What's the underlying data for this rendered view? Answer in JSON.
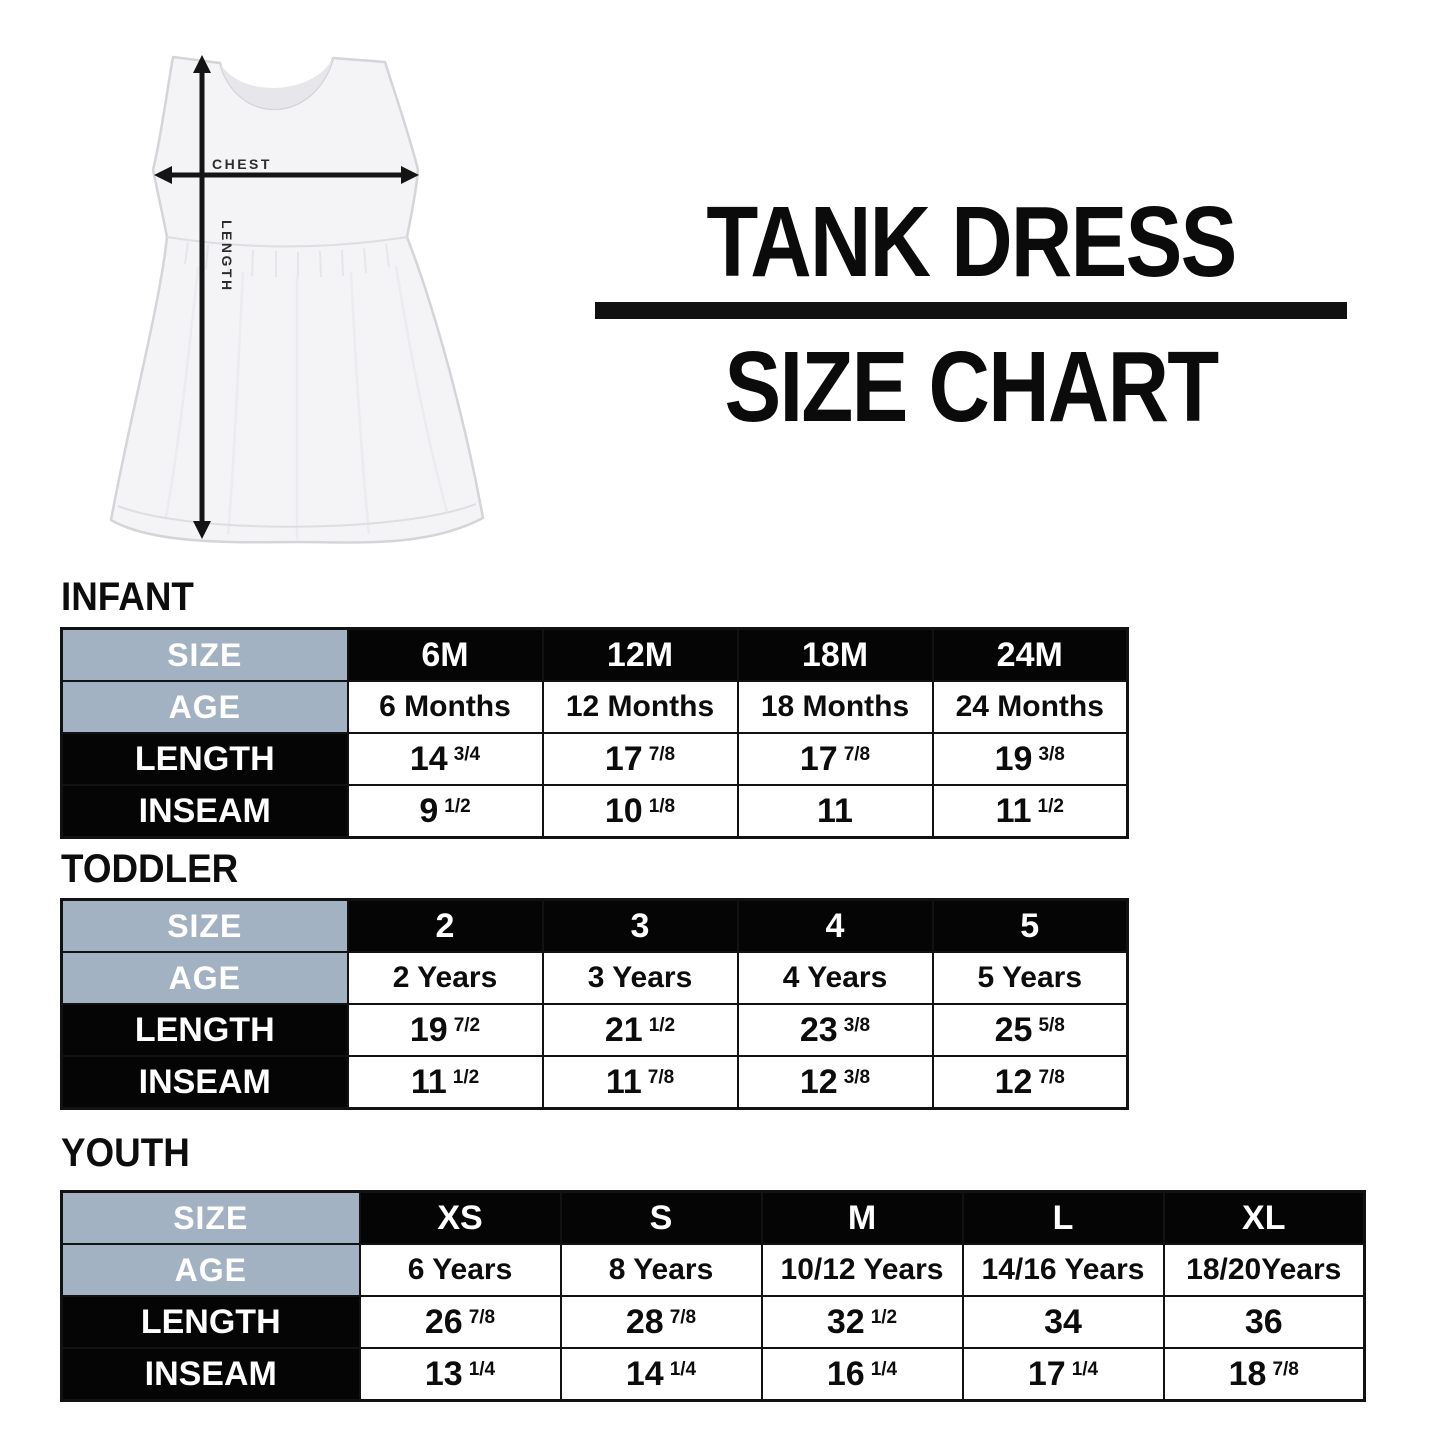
{
  "header": {
    "title_line1": "TANK DRESS",
    "title_line2": "SIZE CHART"
  },
  "figure": {
    "garment": "tank dress",
    "chest_label": "CHEST",
    "length_label": "LENGTH"
  },
  "colors": {
    "accent_blue": "#a3b2c3",
    "header_black": "#050505",
    "text_black": "#0c0c0c"
  },
  "tables": [
    {
      "heading": "INFANT",
      "labels": {
        "size": "SIZE",
        "age": "AGE",
        "length": "LENGTH",
        "inseam": "INSEAM"
      },
      "sizes": [
        "6M",
        "12M",
        "18M",
        "24M"
      ],
      "ages": [
        "6 Months",
        "12 Months",
        "18 Months",
        "24 Months"
      ],
      "length": [
        {
          "whole": "14",
          "frac": "3/4"
        },
        {
          "whole": "17",
          "frac": "7/8"
        },
        {
          "whole": "17",
          "frac": "7/8"
        },
        {
          "whole": "19",
          "frac": "3/8"
        }
      ],
      "inseam": [
        {
          "whole": "9",
          "frac": "1/2"
        },
        {
          "whole": "10",
          "frac": "1/8"
        },
        {
          "whole": "11",
          "frac": ""
        },
        {
          "whole": "11",
          "frac": "1/2"
        }
      ]
    },
    {
      "heading": "TODDLER",
      "labels": {
        "size": "SIZE",
        "age": "AGE",
        "length": "LENGTH",
        "inseam": "INSEAM"
      },
      "sizes": [
        "2",
        "3",
        "4",
        "5"
      ],
      "ages": [
        "2 Years",
        "3 Years",
        "4 Years",
        "5 Years"
      ],
      "length": [
        {
          "whole": "19",
          "frac": "7/2"
        },
        {
          "whole": "21",
          "frac": "1/2"
        },
        {
          "whole": "23",
          "frac": "3/8"
        },
        {
          "whole": "25",
          "frac": "5/8"
        }
      ],
      "inseam": [
        {
          "whole": "11",
          "frac": "1/2"
        },
        {
          "whole": "11",
          "frac": "7/8"
        },
        {
          "whole": "12",
          "frac": "3/8"
        },
        {
          "whole": "12",
          "frac": "7/8"
        }
      ]
    },
    {
      "heading": "YOUTH",
      "labels": {
        "size": "SIZE",
        "age": "AGE",
        "length": "LENGTH",
        "inseam": "INSEAM"
      },
      "sizes": [
        "XS",
        "S",
        "M",
        "L",
        "XL"
      ],
      "ages": [
        "6 Years",
        "8 Years",
        "10/12 Years",
        "14/16 Years",
        "18/20Years"
      ],
      "length": [
        {
          "whole": "26",
          "frac": "7/8"
        },
        {
          "whole": "28",
          "frac": "7/8"
        },
        {
          "whole": "32",
          "frac": "1/2"
        },
        {
          "whole": "34",
          "frac": ""
        },
        {
          "whole": "36",
          "frac": ""
        }
      ],
      "inseam": [
        {
          "whole": "13",
          "frac": "1/4"
        },
        {
          "whole": "14",
          "frac": "1/4"
        },
        {
          "whole": "16",
          "frac": "1/4"
        },
        {
          "whole": "17",
          "frac": "1/4"
        },
        {
          "whole": "18",
          "frac": "7/8"
        }
      ]
    }
  ]
}
